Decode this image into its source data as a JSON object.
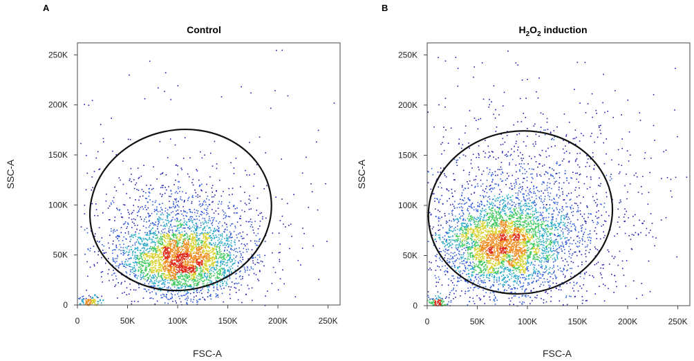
{
  "chart_data": [
    {
      "type": "scatter",
      "panel_letter": "A",
      "title": "Control",
      "title_sub": "",
      "title_rest": "",
      "xlabel": "FSC-A",
      "ylabel": "SSC-A",
      "xlim": [
        0,
        262000
      ],
      "ylim": [
        0,
        262000
      ],
      "x_ticks": [
        0,
        50000,
        100000,
        150000,
        200000,
        250000
      ],
      "x_tick_labels": [
        "0",
        "50K",
        "100K",
        "150K",
        "200K",
        "250K"
      ],
      "y_ticks": [
        0,
        50000,
        100000,
        150000,
        200000,
        250000
      ],
      "y_tick_labels": [
        "0",
        "50K",
        "100K",
        "150K",
        "200K",
        "250K"
      ],
      "gate": {
        "shape": "ellipse",
        "center": [
          103000,
          95000
        ],
        "radius_x": 91000,
        "radius_y": 80000,
        "rotation_deg": -12
      },
      "populations": [
        {
          "center": [
            105000,
            45000
          ],
          "spread": [
            28000,
            17000
          ],
          "n": 2600,
          "weight": "dense"
        },
        {
          "center": [
            100000,
            70000
          ],
          "spread": [
            45000,
            32000
          ],
          "n": 1300,
          "weight": "sparse"
        },
        {
          "center": [
            12000,
            3000
          ],
          "spread": [
            6000,
            3000
          ],
          "n": 140,
          "weight": "debris"
        }
      ],
      "density_colors": [
        "#1a1aa8",
        "#2c58d8",
        "#22a6c8",
        "#3cc85a",
        "#d8d02a",
        "#f08a1c",
        "#e02818"
      ]
    },
    {
      "type": "scatter",
      "panel_letter": "B",
      "title": "H",
      "title_sub": "2",
      "title_sup_o": "O",
      "title_rest": " induction",
      "xlabel": "FSC-A",
      "ylabel": "SSC-A",
      "xlim": [
        0,
        262000
      ],
      "ylim": [
        0,
        262000
      ],
      "x_ticks": [
        0,
        50000,
        100000,
        150000,
        200000,
        250000
      ],
      "x_tick_labels": [
        "0",
        "50K",
        "100K",
        "150K",
        "200K",
        "250K"
      ],
      "y_ticks": [
        0,
        50000,
        100000,
        150000,
        200000,
        250000
      ],
      "y_tick_labels": [
        "0",
        "50K",
        "100K",
        "150K",
        "200K",
        "250K"
      ],
      "gate": {
        "shape": "ellipse",
        "center": [
          93000,
          93000
        ],
        "radius_x": 92000,
        "radius_y": 81000,
        "rotation_deg": -8
      },
      "populations": [
        {
          "center": [
            75000,
            62000
          ],
          "spread": [
            30000,
            22000
          ],
          "n": 3000,
          "weight": "dense"
        },
        {
          "center": [
            95000,
            85000
          ],
          "spread": [
            55000,
            50000
          ],
          "n": 1800,
          "weight": "sparse"
        },
        {
          "center": [
            10000,
            3000
          ],
          "spread": [
            5000,
            3000
          ],
          "n": 120,
          "weight": "debris"
        }
      ],
      "density_colors": [
        "#1a1aa8",
        "#2c58d8",
        "#22a6c8",
        "#3cc85a",
        "#d8d02a",
        "#f08a1c",
        "#e02818"
      ]
    }
  ]
}
